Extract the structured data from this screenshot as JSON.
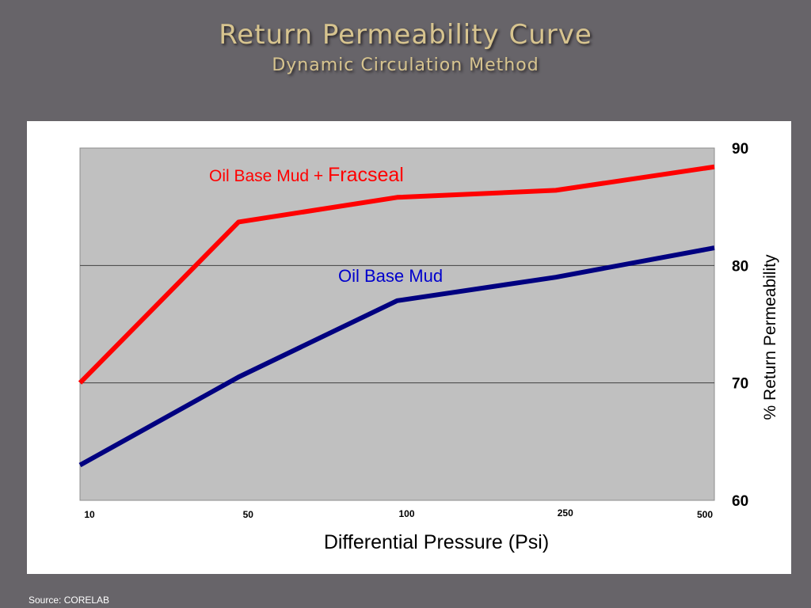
{
  "slide": {
    "title": "Return Permeability Curve",
    "subtitle": "Dynamic Circulation Method",
    "source": "Source: CORELAB"
  },
  "chart_data": {
    "type": "line",
    "x": [
      "10",
      "50",
      "100",
      "250",
      "500"
    ],
    "series": [
      {
        "name": "Oil Base Mud + Fracseal",
        "label_part1": "Oil Base Mud + ",
        "label_part2": "Fracseal",
        "color": "#ff0000",
        "values": [
          70,
          83.7,
          85.8,
          86.4,
          88.4
        ]
      },
      {
        "name": "Oil Base Mud",
        "color": "#000080",
        "values": [
          63,
          70.5,
          77,
          79,
          81.5
        ]
      }
    ],
    "xlabel": "Differential Pressure (Psi)",
    "ylabel": "%  Return Permeability",
    "ylim": [
      60,
      90
    ],
    "yticks": [
      "60",
      "70",
      "80",
      "90"
    ],
    "grid": true,
    "plot_background": "#c0c0c0"
  }
}
